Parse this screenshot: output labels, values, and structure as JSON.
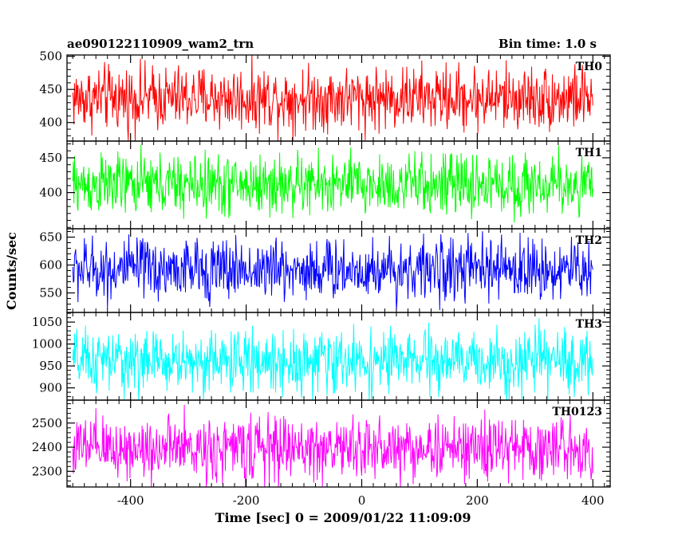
{
  "chart_data": {
    "type": "line",
    "title_left": "ae090122110909_wam2_trn",
    "title_right": "Bin time: 1.0 s",
    "xlabel": "Time [sec] 0 = 2009/01/22 11:09:09",
    "ylabel": "Counts/sec",
    "xlim": [
      -510,
      430
    ],
    "x_range": [
      -500,
      400
    ],
    "bin_time_s": 1.0,
    "x_ticks": [
      -400,
      -200,
      0,
      200,
      400
    ],
    "x_minor_step": 20,
    "grid": false,
    "legend": "none",
    "panels": [
      {
        "name": "TH0",
        "color": "#ff0000",
        "ylim": [
          372,
          502
        ],
        "y_ticks": [
          400,
          450,
          500
        ],
        "y_minor_step": 10,
        "mean": 437,
        "spread": 22
      },
      {
        "name": "TH1",
        "color": "#00ff00",
        "ylim": [
          348,
          474
        ],
        "y_ticks": [
          400,
          450
        ],
        "y_minor_step": 10,
        "mean": 411,
        "spread": 20
      },
      {
        "name": "TH2",
        "color": "#0000ff",
        "ylim": [
          515,
          665
        ],
        "y_ticks": [
          550,
          600,
          650
        ],
        "y_minor_step": 10,
        "mean": 592,
        "spread": 25
      },
      {
        "name": "TH3",
        "color": "#00ffff",
        "ylim": [
          872,
          1072
        ],
        "y_ticks": [
          900,
          950,
          1000,
          1050
        ],
        "y_minor_step": 10,
        "mean": 960,
        "spread": 32
      },
      {
        "name": "TH0123",
        "color": "#ff00ff",
        "ylim": [
          2235,
          2595
        ],
        "y_ticks": [
          2300,
          2400,
          2500
        ],
        "y_minor_step": 20,
        "mean": 2395,
        "spread": 60
      }
    ]
  }
}
